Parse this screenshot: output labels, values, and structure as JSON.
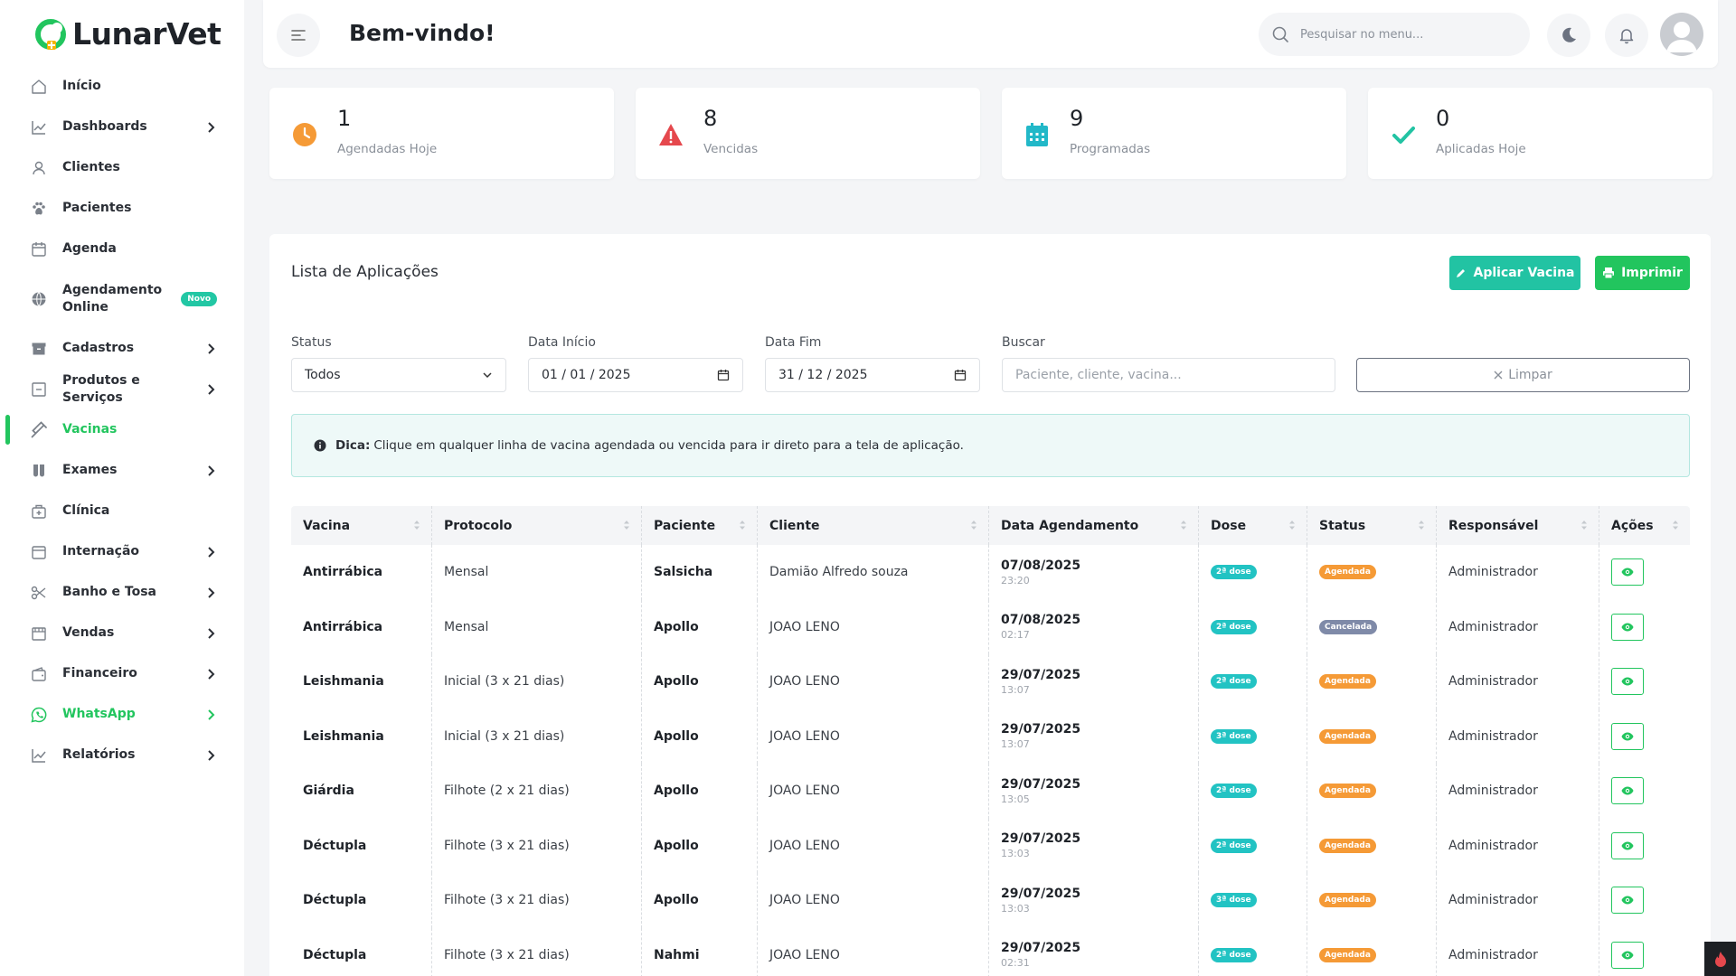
{
  "app": {
    "name": "LunarVet"
  },
  "sidebar": {
    "items": [
      {
        "label": "Início",
        "icon": "home-icon",
        "chevron": false
      },
      {
        "label": "Dashboards",
        "icon": "chart-line-icon",
        "chevron": true
      },
      {
        "label": "Clientes",
        "icon": "user-icon",
        "chevron": false
      },
      {
        "label": "Pacientes",
        "icon": "paw-icon",
        "chevron": false
      },
      {
        "label": "Agenda",
        "icon": "calendar-icon",
        "chevron": false
      },
      {
        "label": "Agendamento Online",
        "icon": "globe-icon",
        "chevron": false,
        "badge": "Novo"
      },
      {
        "label": "Cadastros",
        "icon": "archive-icon",
        "chevron": true
      },
      {
        "label": "Produtos e Serviços",
        "icon": "box-icon",
        "chevron": true
      },
      {
        "label": "Vacinas",
        "icon": "syringe-icon",
        "chevron": false,
        "active": true
      },
      {
        "label": "Exames",
        "icon": "test-tube-icon",
        "chevron": true
      },
      {
        "label": "Clínica",
        "icon": "clinic-icon",
        "chevron": false
      },
      {
        "label": "Internação",
        "icon": "bed-icon",
        "chevron": true
      },
      {
        "label": "Banho e Tosa",
        "icon": "scissors-icon",
        "chevron": true
      },
      {
        "label": "Vendas",
        "icon": "store-icon",
        "chevron": true
      },
      {
        "label": "Financeiro",
        "icon": "wallet-icon",
        "chevron": true
      },
      {
        "label": "WhatsApp",
        "icon": "whatsapp-icon",
        "chevron": true
      },
      {
        "label": "Relatórios",
        "icon": "chart-line-icon",
        "chevron": true
      }
    ]
  },
  "header": {
    "title": "Bem-vindo!",
    "search_placeholder": "Pesquisar no menu..."
  },
  "stats": [
    {
      "value": "1",
      "label": "Agendadas Hoje",
      "icon": "clock-icon",
      "color": "#f59a36"
    },
    {
      "value": "8",
      "label": "Vencidas",
      "icon": "warning-icon",
      "color": "#e5484d"
    },
    {
      "value": "9",
      "label": "Programadas",
      "icon": "calendar-icon",
      "color": "#22b8c8"
    },
    {
      "value": "0",
      "label": "Aplicadas Hoje",
      "icon": "check-icon",
      "color": "#22c3a3"
    }
  ],
  "main": {
    "title": "Lista de Aplicações",
    "apply_label": "Aplicar Vacina",
    "print_label": "Imprimir",
    "filters": {
      "status_label": "Status",
      "status_value": "Todos",
      "start_label": "Data Início",
      "start_value": "01 / 01 / 2025",
      "end_label": "Data Fim",
      "end_value": "31 / 12 / 2025",
      "search_label": "Buscar",
      "search_placeholder": "Paciente, cliente, vacina...",
      "clear_label": "Limpar"
    },
    "tip": {
      "bold": "Dica:",
      "text": "Clique em qualquer linha de vacina agendada ou vencida para ir direto para a tela de aplicação."
    },
    "table": {
      "columns": [
        "Vacina",
        "Protocolo",
        "Paciente",
        "Cliente",
        "Data Agendamento",
        "Dose",
        "Status",
        "Responsável",
        "Ações"
      ],
      "rows": [
        {
          "vacina": "Antirrábica",
          "protocolo": "Mensal",
          "paciente": "Salsicha",
          "cliente": "Damião Alfredo souza",
          "data": "07/08/2025",
          "hora": "23:20",
          "dose": "2ª dose",
          "status": "Agendada",
          "responsavel": "Administrador"
        },
        {
          "vacina": "Antirrábica",
          "protocolo": "Mensal",
          "paciente": "Apollo",
          "cliente": "JOAO LENO",
          "data": "07/08/2025",
          "hora": "02:17",
          "dose": "2ª dose",
          "status": "Cancelada",
          "responsavel": "Administrador"
        },
        {
          "vacina": "Leishmania",
          "protocolo": "Inicial (3 x 21 dias)",
          "paciente": "Apollo",
          "cliente": "JOAO LENO",
          "data": "29/07/2025",
          "hora": "13:07",
          "dose": "2ª dose",
          "status": "Agendada",
          "responsavel": "Administrador"
        },
        {
          "vacina": "Leishmania",
          "protocolo": "Inicial (3 x 21 dias)",
          "paciente": "Apollo",
          "cliente": "JOAO LENO",
          "data": "29/07/2025",
          "hora": "13:07",
          "dose": "3ª dose",
          "status": "Agendada",
          "responsavel": "Administrador"
        },
        {
          "vacina": "Giárdia",
          "protocolo": "Filhote (2 x 21 dias)",
          "paciente": "Apollo",
          "cliente": "JOAO LENO",
          "data": "29/07/2025",
          "hora": "13:05",
          "dose": "2ª dose",
          "status": "Agendada",
          "responsavel": "Administrador"
        },
        {
          "vacina": "Déctupla",
          "protocolo": "Filhote (3 x 21 dias)",
          "paciente": "Apollo",
          "cliente": "JOAO LENO",
          "data": "29/07/2025",
          "hora": "13:03",
          "dose": "2ª dose",
          "status": "Agendada",
          "responsavel": "Administrador"
        },
        {
          "vacina": "Déctupla",
          "protocolo": "Filhote (3 x 21 dias)",
          "paciente": "Apollo",
          "cliente": "JOAO LENO",
          "data": "29/07/2025",
          "hora": "13:03",
          "dose": "3ª dose",
          "status": "Agendada",
          "responsavel": "Administrador"
        },
        {
          "vacina": "Déctupla",
          "protocolo": "Filhote (3 x 21 dias)",
          "paciente": "Nahmi",
          "cliente": "JOAO LENO",
          "data": "29/07/2025",
          "hora": "02:31",
          "dose": "2ª dose",
          "status": "Agendada",
          "responsavel": "Administrador"
        }
      ]
    }
  },
  "colors": {
    "accent": "#22c55e",
    "teal": "#22c3a3",
    "dose_pill": "#22c3c3",
    "scheduled_pill": "#f59a36",
    "cancelled_pill": "#7f8aa8"
  }
}
